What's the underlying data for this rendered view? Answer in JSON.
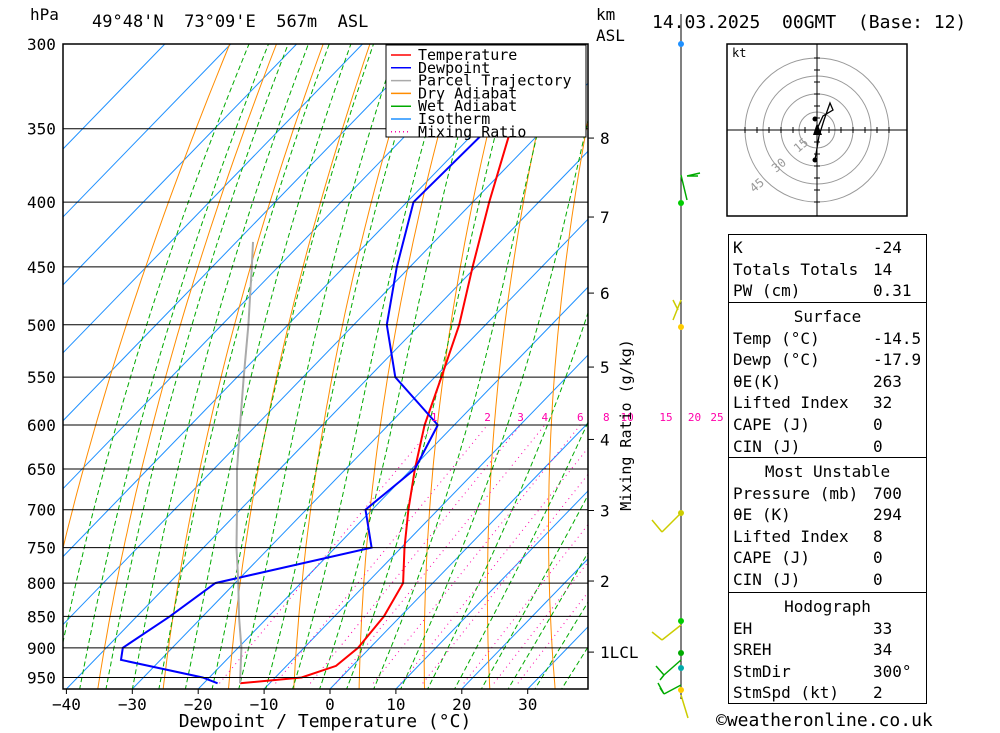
{
  "header": {
    "pressure_unit": "hPa",
    "location": "49°48'N  73°09'E  567m  ASL",
    "height_unit_top": "km",
    "height_unit_bottom": "ASL",
    "datetime": "14.03.2025  00GMT  (Base: 12)"
  },
  "chart_data": {
    "type": "line",
    "chart_kind": "skew-T log-P diagram",
    "xlabel": "Dewpoint / Temperature (°C)",
    "ylabel": "hPa",
    "x_ticks": [
      -40,
      -30,
      -20,
      -10,
      0,
      10,
      20,
      30
    ],
    "pressure_levels": [
      300,
      350,
      400,
      450,
      500,
      550,
      600,
      650,
      700,
      750,
      800,
      850,
      900,
      950
    ],
    "height_km_ticks": [
      {
        "label": "8",
        "p": 356
      },
      {
        "label": "7",
        "p": 411
      },
      {
        "label": "6",
        "p": 472
      },
      {
        "label": "5",
        "p": 540
      },
      {
        "label": "4",
        "p": 616
      },
      {
        "label": "3",
        "p": 701
      },
      {
        "label": "2",
        "p": 797
      },
      {
        "label": "1LCL",
        "p": 907
      }
    ],
    "mixing_ratio_label": "Mixing Ratio (g/kg)",
    "mixing_ratio_values": [
      "1",
      "2",
      "3",
      "4",
      "6",
      "8",
      "10",
      "15",
      "20",
      "25"
    ],
    "legend": [
      {
        "name": "Temperature",
        "color": "#ff0000",
        "style": "solid"
      },
      {
        "name": "Dewpoint",
        "color": "#0000ff",
        "style": "solid"
      },
      {
        "name": "Parcel Trajectory",
        "color": "#aaaaaa",
        "style": "solid"
      },
      {
        "name": "Dry Adiabat",
        "color": "#ff8c00",
        "style": "solid"
      },
      {
        "name": "Wet Adiabat",
        "color": "#00aa00",
        "style": "solid"
      },
      {
        "name": "Isotherm",
        "color": "#1e90ff",
        "style": "solid"
      },
      {
        "name": "Mixing Ratio",
        "color": "#ff00aa",
        "style": "dotted"
      }
    ],
    "series": [
      {
        "name": "Temperature",
        "color": "#ff0000",
        "points": [
          {
            "p": 960,
            "t": -14.5
          },
          {
            "p": 950,
            "t": -6
          },
          {
            "p": 930,
            "t": -2.5
          },
          {
            "p": 900,
            "t": -1.8
          },
          {
            "p": 850,
            "t": -2.5
          },
          {
            "p": 800,
            "t": -4.5
          },
          {
            "p": 750,
            "t": -9.5
          },
          {
            "p": 700,
            "t": -14.5
          },
          {
            "p": 650,
            "t": -19.5
          },
          {
            "p": 600,
            "t": -24.5
          },
          {
            "p": 550,
            "t": -29
          },
          {
            "p": 500,
            "t": -34
          },
          {
            "p": 450,
            "t": -40.5
          },
          {
            "p": 400,
            "t": -47.5
          },
          {
            "p": 350,
            "t": -55
          },
          {
            "p": 300,
            "t": -63.5
          }
        ]
      },
      {
        "name": "Dewpoint",
        "color": "#0000ff",
        "points": [
          {
            "p": 960,
            "t": -17.9
          },
          {
            "p": 950,
            "t": -21
          },
          {
            "p": 920,
            "t": -36
          },
          {
            "p": 900,
            "t": -37.5
          },
          {
            "p": 850,
            "t": -35
          },
          {
            "p": 800,
            "t": -33
          },
          {
            "p": 750,
            "t": -14.5
          },
          {
            "p": 700,
            "t": -21
          },
          {
            "p": 650,
            "t": -19.5
          },
          {
            "p": 600,
            "t": -22.5
          },
          {
            "p": 550,
            "t": -36
          },
          {
            "p": 500,
            "t": -45
          },
          {
            "p": 450,
            "t": -52
          },
          {
            "p": 400,
            "t": -59
          },
          {
            "p": 350,
            "t": -58.5
          },
          {
            "p": 300,
            "t": -67.5
          }
        ]
      },
      {
        "name": "Parcel Trajectory",
        "color": "#aaaaaa",
        "points": [
          {
            "p": 960,
            "t": -14.5
          },
          {
            "p": 900,
            "t": -19.5
          },
          {
            "p": 850,
            "t": -24.5
          },
          {
            "p": 800,
            "t": -29.5
          },
          {
            "p": 750,
            "t": -35
          },
          {
            "p": 700,
            "t": -40.5
          },
          {
            "p": 650,
            "t": -46.5
          },
          {
            "p": 600,
            "t": -52.5
          },
          {
            "p": 550,
            "t": -59
          },
          {
            "p": 500,
            "t": -66
          },
          {
            "p": 450,
            "t": -74
          },
          {
            "p": 430,
            "t": -77.5
          }
        ]
      }
    ]
  },
  "hodograph": {
    "unit": "kt",
    "ring_labels": [
      "15",
      "30",
      "45"
    ]
  },
  "indices": {
    "basic": [
      {
        "label": "K",
        "value": "-24"
      },
      {
        "label": "Totals Totals",
        "value": "14"
      },
      {
        "label": "PW (cm)",
        "value": "0.31"
      }
    ],
    "surface": {
      "title": "Surface",
      "rows": [
        {
          "label": "Temp (°C)",
          "value": "-14.5"
        },
        {
          "label": "Dewp (°C)",
          "value": "-17.9"
        },
        {
          "label": "θE(K)",
          "value": "263"
        },
        {
          "label": "Lifted Index",
          "value": "32"
        },
        {
          "label": "CAPE (J)",
          "value": "0"
        },
        {
          "label": "CIN (J)",
          "value": "0"
        }
      ]
    },
    "most_unstable": {
      "title": "Most Unstable",
      "rows": [
        {
          "label": "Pressure (mb)",
          "value": "700"
        },
        {
          "label": "θE (K)",
          "value": "294"
        },
        {
          "label": "Lifted Index",
          "value": "8"
        },
        {
          "label": "CAPE (J)",
          "value": "0"
        },
        {
          "label": "CIN (J)",
          "value": "0"
        }
      ]
    },
    "hodograph": {
      "title": "Hodograph",
      "rows": [
        {
          "label": "EH",
          "value": "33"
        },
        {
          "label": "SREH",
          "value": "34"
        },
        {
          "label": "StmDir",
          "value": "300°"
        },
        {
          "label": "StmSpd (kt)",
          "value": "2"
        }
      ]
    }
  },
  "footer": {
    "copyright": "©weatheronline.co.uk"
  }
}
